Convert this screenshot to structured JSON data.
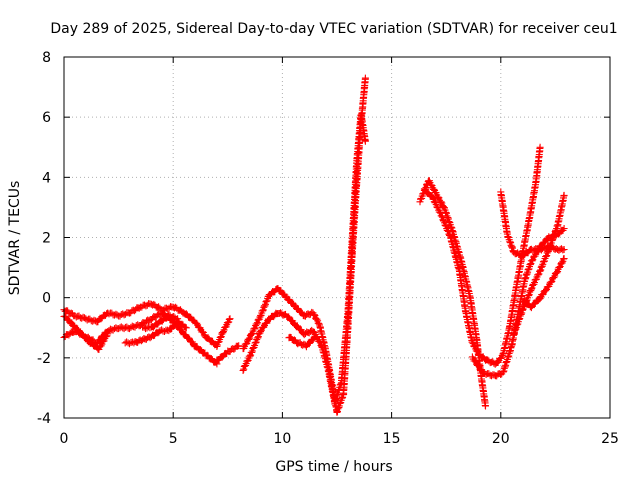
{
  "chart_data": {
    "type": "scatter",
    "title": "Day 289 of 2025, Sidereal Day-to-day VTEC variation (SDTVAR) for receiver ceu1",
    "xlabel": "GPS time / hours",
    "ylabel": "SDTVAR / TECUs",
    "xlim": [
      0,
      25
    ],
    "ylim": [
      -4,
      8
    ],
    "xticks": [
      "0",
      "5",
      "10",
      "15",
      "20",
      "25"
    ],
    "yticks": [
      "-4",
      "-2",
      "0",
      "2",
      "4",
      "6",
      "8"
    ],
    "grid": true,
    "legend": "none",
    "marker": "+",
    "color": "#ff0000",
    "traces": [
      {
        "points": [
          [
            0.0,
            -0.4
          ],
          [
            0.5,
            -0.6
          ],
          [
            1.0,
            -0.7
          ],
          [
            1.5,
            -0.8
          ],
          [
            2.0,
            -0.5
          ],
          [
            2.5,
            -0.6
          ],
          [
            3.0,
            -0.5
          ],
          [
            3.5,
            -0.3
          ],
          [
            4.0,
            -0.2
          ],
          [
            4.5,
            -0.4
          ],
          [
            5.0,
            -0.3
          ],
          [
            5.5,
            -0.5
          ],
          [
            6.0,
            -0.8
          ],
          [
            6.5,
            -1.3
          ],
          [
            7.0,
            -1.6
          ],
          [
            7.3,
            -1.1
          ],
          [
            7.6,
            -0.7
          ]
        ]
      },
      {
        "points": [
          [
            0.0,
            -1.3
          ],
          [
            0.5,
            -1.1
          ],
          [
            1.0,
            -1.3
          ],
          [
            1.5,
            -1.5
          ],
          [
            2.0,
            -1.1
          ],
          [
            2.5,
            -1.0
          ],
          [
            3.0,
            -1.0
          ],
          [
            3.5,
            -0.9
          ],
          [
            4.0,
            -0.7
          ],
          [
            4.5,
            -0.5
          ],
          [
            5.0,
            -0.8
          ],
          [
            5.5,
            -1.2
          ],
          [
            6.0,
            -1.6
          ],
          [
            6.5,
            -1.9
          ],
          [
            7.0,
            -2.2
          ]
        ]
      },
      {
        "points": [
          [
            0.0,
            -0.6
          ],
          [
            0.4,
            -0.9
          ],
          [
            0.8,
            -1.2
          ],
          [
            1.2,
            -1.5
          ],
          [
            1.6,
            -1.7
          ],
          [
            2.0,
            -1.2
          ]
        ]
      },
      {
        "points": [
          [
            2.8,
            -1.5
          ],
          [
            3.2,
            -1.5
          ],
          [
            3.6,
            -1.4
          ],
          [
            4.0,
            -1.3
          ],
          [
            4.4,
            -1.1
          ],
          [
            4.8,
            -1.1
          ],
          [
            5.2,
            -0.8
          ],
          [
            5.6,
            -1.0
          ]
        ]
      },
      {
        "points": [
          [
            3.6,
            -1.0
          ],
          [
            4.0,
            -1.0
          ],
          [
            4.4,
            -0.8
          ],
          [
            4.8,
            -0.6
          ],
          [
            5.2,
            -0.7
          ]
        ]
      },
      {
        "points": [
          [
            7.0,
            -2.1
          ],
          [
            7.5,
            -1.8
          ],
          [
            8.0,
            -1.6
          ]
        ]
      },
      {
        "points": [
          [
            8.2,
            -1.7
          ],
          [
            8.6,
            -1.2
          ],
          [
            9.0,
            -0.6
          ],
          [
            9.4,
            0.1
          ],
          [
            9.8,
            0.3
          ],
          [
            10.2,
            0.0
          ],
          [
            10.6,
            -0.3
          ],
          [
            11.0,
            -0.6
          ],
          [
            11.4,
            -0.5
          ],
          [
            11.7,
            -0.9
          ],
          [
            12.0,
            -1.8
          ],
          [
            12.3,
            -3.0
          ],
          [
            12.5,
            -3.8
          ],
          [
            12.8,
            -3.2
          ],
          [
            13.0,
            -1.0
          ],
          [
            13.2,
            1.5
          ],
          [
            13.4,
            3.8
          ],
          [
            13.6,
            5.8
          ],
          [
            13.8,
            7.3
          ]
        ]
      },
      {
        "points": [
          [
            8.2,
            -2.4
          ],
          [
            8.6,
            -1.8
          ],
          [
            9.0,
            -1.1
          ],
          [
            9.4,
            -0.7
          ],
          [
            9.8,
            -0.5
          ],
          [
            10.2,
            -0.6
          ],
          [
            10.6,
            -0.9
          ],
          [
            11.0,
            -1.2
          ],
          [
            11.4,
            -1.1
          ],
          [
            11.8,
            -1.6
          ],
          [
            12.1,
            -2.4
          ],
          [
            12.4,
            -3.5
          ],
          [
            12.7,
            -2.8
          ],
          [
            13.0,
            -0.5
          ],
          [
            13.2,
            2.0
          ],
          [
            13.4,
            4.5
          ],
          [
            13.6,
            6.1
          ],
          [
            13.8,
            5.2
          ]
        ]
      },
      {
        "points": [
          [
            10.3,
            -1.3
          ],
          [
            10.7,
            -1.5
          ],
          [
            11.1,
            -1.6
          ],
          [
            11.5,
            -1.3
          ]
        ]
      },
      {
        "points": [
          [
            16.3,
            3.2
          ],
          [
            16.7,
            3.9
          ],
          [
            17.0,
            3.5
          ],
          [
            17.4,
            3.0
          ],
          [
            17.8,
            2.2
          ],
          [
            18.2,
            1.2
          ],
          [
            18.6,
            0.0
          ],
          [
            18.9,
            -1.4
          ],
          [
            19.1,
            -2.6
          ],
          [
            19.3,
            -3.6
          ]
        ]
      },
      {
        "points": [
          [
            16.5,
            3.6
          ],
          [
            16.9,
            3.3
          ],
          [
            17.3,
            2.7
          ],
          [
            17.7,
            2.0
          ],
          [
            18.1,
            0.9
          ],
          [
            18.4,
            -0.5
          ],
          [
            18.7,
            -1.5
          ],
          [
            19.0,
            -1.9
          ],
          [
            19.4,
            -2.1
          ],
          [
            19.8,
            -2.2
          ],
          [
            20.1,
            -1.9
          ],
          [
            20.4,
            -1.0
          ],
          [
            20.7,
            0.3
          ],
          [
            21.0,
            1.5
          ],
          [
            21.3,
            2.6
          ],
          [
            21.6,
            3.8
          ],
          [
            21.8,
            5.0
          ]
        ]
      },
      {
        "points": [
          [
            18.7,
            -2.0
          ],
          [
            19.2,
            -2.5
          ],
          [
            19.7,
            -2.6
          ],
          [
            20.1,
            -2.5
          ],
          [
            20.5,
            -1.6
          ],
          [
            20.8,
            -0.5
          ],
          [
            21.1,
            0.6
          ],
          [
            21.4,
            1.2
          ],
          [
            21.8,
            1.7
          ],
          [
            22.2,
            2.0
          ],
          [
            22.6,
            2.1
          ],
          [
            22.9,
            2.3
          ]
        ]
      },
      {
        "points": [
          [
            20.0,
            3.5
          ],
          [
            20.3,
            2.1
          ],
          [
            20.6,
            1.5
          ],
          [
            21.0,
            1.4
          ],
          [
            21.4,
            1.6
          ],
          [
            21.8,
            1.6
          ],
          [
            22.2,
            1.7
          ],
          [
            22.6,
            1.6
          ],
          [
            22.9,
            1.6
          ]
        ]
      },
      {
        "points": [
          [
            20.6,
            -1.2
          ],
          [
            21.0,
            -0.4
          ],
          [
            21.4,
            0.3
          ],
          [
            21.8,
            0.9
          ],
          [
            22.2,
            1.6
          ],
          [
            22.6,
            2.4
          ],
          [
            22.9,
            3.4
          ]
        ]
      },
      {
        "points": [
          [
            21.0,
            -0.1
          ],
          [
            21.4,
            -0.3
          ],
          [
            21.8,
            0.0
          ],
          [
            22.2,
            0.4
          ],
          [
            22.6,
            0.9
          ],
          [
            22.9,
            1.3
          ]
        ]
      }
    ]
  }
}
